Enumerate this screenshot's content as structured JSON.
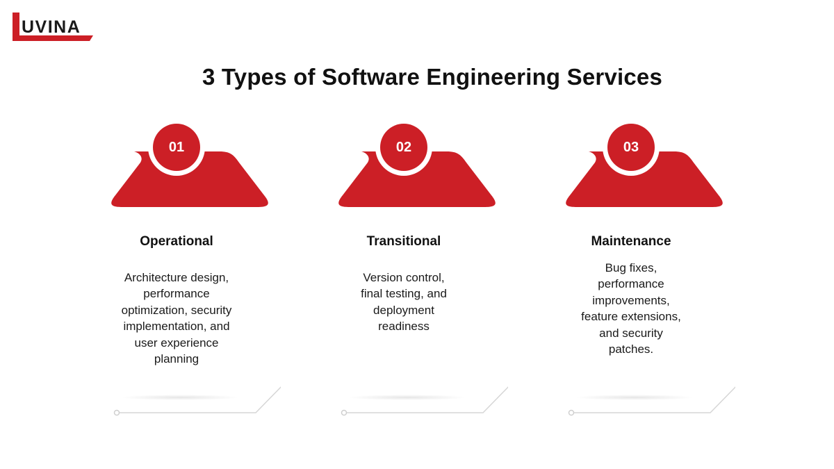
{
  "logo": {
    "text": "UVINA",
    "mark": "L"
  },
  "title": "3 Types of Software Engineering Services",
  "colors": {
    "accent": "#cc1f26",
    "line": "#d6d6d6"
  },
  "steps": [
    {
      "number": "01",
      "title": "Operational",
      "description_lines": [
        "Architecture design,",
        "performance",
        "optimization, security",
        "implementation, and",
        "user experience",
        "planning"
      ]
    },
    {
      "number": "02",
      "title": "Transitional",
      "description_lines": [
        "Version control,",
        "final testing, and",
        "deployment",
        "readiness"
      ]
    },
    {
      "number": "03",
      "title": "Maintenance",
      "description_lines": [
        "Bug fixes,",
        "performance",
        "improvements,",
        "feature extensions,",
        "and security",
        "patches."
      ]
    }
  ]
}
